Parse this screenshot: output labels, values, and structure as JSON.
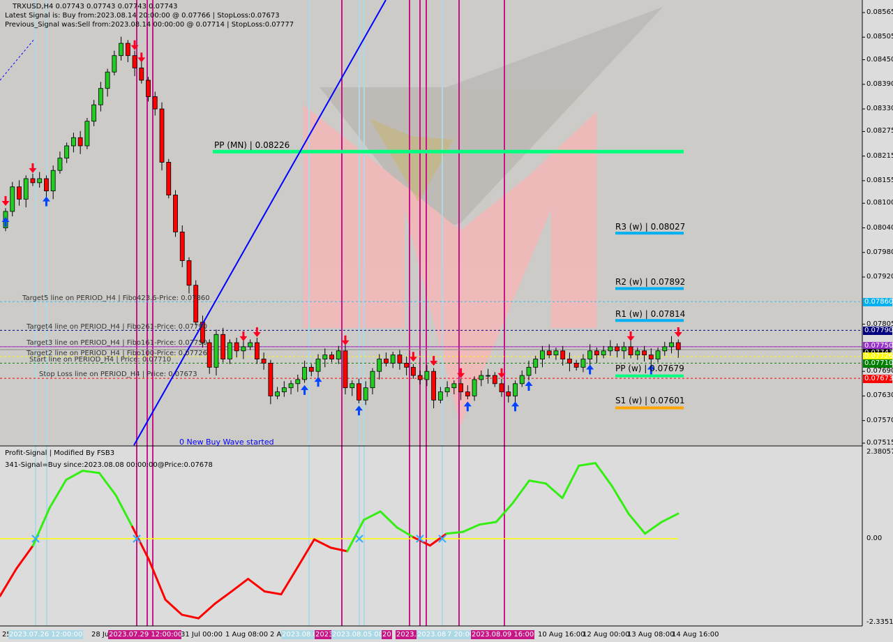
{
  "header": {
    "symbol_line": "TRXUSD,H4  0.07743 0.07743 0.07743 0.07743",
    "latest_signal": "Latest Signal is: Buy from:2023.08.14 20:00:00 @ 0.07766 | StopLoss:0.07673",
    "previous_signal": "Previous_Signal was:Sell from:2023.08.14 00:00:00 @ 0.07714 | StopLoss:0.07777"
  },
  "colors": {
    "bull_candle": "#22cc22",
    "bear_candle": "#ff0000",
    "pp_line": "#00ff7f",
    "r_lines": "#00b0f0",
    "s1_line": "#ffa500",
    "vline_magenta": "#c71585",
    "vline_lightblue": "#add8e6",
    "trendline": "#0000ff",
    "indicator_up": "#33ee11",
    "indicator_down": "#ff0000",
    "zero_line": "#ffff00"
  },
  "level_lines": [
    {
      "label": "Target5 line on PERIOD_H4 | Fibo423.6-Price: 0.07860",
      "price": 0.0786,
      "color": "#33bbee",
      "box": "0.07860"
    },
    {
      "label": "Target4 line on PERIOD_H4 | Fibo261-Price: 0.07790",
      "price": 0.0779,
      "color": "#000080",
      "box": "0.07790"
    },
    {
      "label": "Target3 line on PERIOD_H4 | Fibo161-Price: 0.07750",
      "price": 0.0775,
      "color": "#ff0000",
      "box": "0.07750"
    },
    {
      "label": "Target2 line on PERIOD_H4 | Fibo100-Price: 0.07726",
      "price": 0.07726,
      "color": "#ffff00",
      "box": "0.07726"
    },
    {
      "label": "Start line on PERIOD_H4 | Price: 0.07710",
      "price": 0.0771,
      "color": "#008000",
      "box": "0.07710"
    },
    {
      "label": "Stop Loss line on PERIOD_H4 | Price: 0.07673",
      "price": 0.07673,
      "color": "#ff0000",
      "box": "0.07673"
    }
  ],
  "price_boxes": {
    "target5": {
      "text": "0.07860",
      "bg": "#00b0f0"
    },
    "target4": {
      "text": "0.07790",
      "bg": "#000080"
    },
    "target3": {
      "text": "0.07750",
      "bg": "#9932cc"
    },
    "current": {
      "text": "0.07743",
      "bg": "#000000"
    },
    "target2": {
      "text": "0.07726",
      "bg": "#ffff00"
    },
    "start": {
      "text": "0.07710",
      "bg": "#008000"
    },
    "stop": {
      "text": "0.07673",
      "bg": "#ff0000"
    }
  },
  "pivots": {
    "pp_mn": {
      "label": "PP (MN) | 0.08226",
      "price": 0.08226
    },
    "r3_w": {
      "label": "R3 (w) | 0.08027",
      "price": 0.08027
    },
    "r2_w": {
      "label": "R2 (w) | 0.07892",
      "price": 0.07892
    },
    "r1_w": {
      "label": "R1 (w) | 0.07814",
      "price": 0.07814
    },
    "pp_w": {
      "label": "PP (w) | 0.07679",
      "price": 0.07679
    },
    "s1_w": {
      "label": "S1 (w) | 0.07601",
      "price": 0.07601
    }
  },
  "wave_text": "0 New Buy Wave started",
  "indicator": {
    "title": "Profit-Signal | Modified By FSB3",
    "signal": "341-Signal=Buy since:2023.08.08 00:00:00@Price:0.07678",
    "axis": [
      "2.38057",
      "0.00",
      "-2.33512"
    ]
  },
  "chart_data": [
    {
      "type": "candlestick",
      "symbol": "TRXUSD",
      "timeframe": "H4",
      "ylim": [
        0.07515,
        0.08565
      ],
      "yticks": [
        "0.08565",
        "0.08505",
        "0.08450",
        "0.08390",
        "0.08330",
        "0.08275",
        "0.08215",
        "0.08155",
        "0.08100",
        "0.08040",
        "0.07980",
        "0.07920",
        "0.07805",
        "0.07690",
        "0.07630",
        "0.07570",
        "0.07515"
      ],
      "xticks": [
        "25",
        "2023.07.26 12:00:00",
        "28 Jul",
        "2023.07.29 12:00:00",
        "31 Jul 00:00",
        "1 Aug 08:00",
        "2 Au",
        "2023.08.0",
        "2023",
        "2023.08.05 08:0",
        "20",
        "2023.0",
        "2023.08.0",
        "7 20:00",
        "2023.08.09 16:00",
        "10 Aug 16:00",
        "12 Aug 00:00",
        "13 Aug 08:00",
        "14 Aug 16:00"
      ],
      "closes": [
        0.0808,
        0.0814,
        0.0811,
        0.0816,
        0.0815,
        0.0816,
        0.0813,
        0.0818,
        0.0821,
        0.0824,
        0.0826,
        0.0824,
        0.083,
        0.0834,
        0.0838,
        0.0842,
        0.0846,
        0.0849,
        0.0846,
        0.0843,
        0.084,
        0.0836,
        0.0833,
        0.082,
        0.0812,
        0.0803,
        0.0796,
        0.079,
        0.0781,
        0.0776,
        0.077,
        0.0778,
        0.0772,
        0.0776,
        0.0774,
        0.0775,
        0.0776,
        0.0772,
        0.0771,
        0.0763,
        0.0764,
        0.0765,
        0.0766,
        0.0767,
        0.077,
        0.0769,
        0.0772,
        0.0773,
        0.0772,
        0.0774,
        0.0765,
        0.0766,
        0.0762,
        0.0765,
        0.0769,
        0.0772,
        0.0771,
        0.0773,
        0.0771,
        0.077,
        0.0768,
        0.0767,
        0.0769,
        0.0762,
        0.0764,
        0.0765,
        0.0766,
        0.0764,
        0.0763,
        0.0767,
        0.0768,
        0.0768,
        0.0766,
        0.0764,
        0.0763,
        0.0766,
        0.0768,
        0.077,
        0.0772,
        0.0774,
        0.0773,
        0.0774,
        0.0772,
        0.0771,
        0.077,
        0.0772,
        0.0774,
        0.0773,
        0.0774,
        0.0775,
        0.0774,
        0.0775,
        0.0773,
        0.0774,
        0.0773,
        0.0772,
        0.0774,
        0.0775,
        0.0776,
        0.07743
      ],
      "signals_down": [
        0,
        4,
        19,
        20,
        35,
        37,
        50,
        60,
        63,
        67,
        73,
        92,
        99
      ],
      "signals_up": [
        0,
        6,
        44,
        46,
        52,
        68,
        75,
        77,
        86,
        95
      ]
    },
    {
      "type": "line",
      "title": "Profit-Signal | Modified By FSB3",
      "ylim": [
        -2.33512,
        2.38057
      ],
      "values": [
        -1.6,
        -0.83,
        -0.19,
        0.85,
        1.62,
        1.87,
        1.81,
        1.2,
        0.33,
        -0.58,
        -1.7,
        -2.12,
        -2.22,
        -1.81,
        -1.47,
        -1.12,
        -1.47,
        -1.55,
        -0.79,
        -0.02,
        -0.25,
        -0.35,
        0.52,
        0.75,
        0.31,
        0.04,
        -0.19,
        0.14,
        0.19,
        0.39,
        0.46,
        0.98,
        1.6,
        1.52,
        1.12,
        2.01,
        2.08,
        1.45,
        0.69,
        0.14,
        0.46,
        0.69
      ]
    }
  ]
}
